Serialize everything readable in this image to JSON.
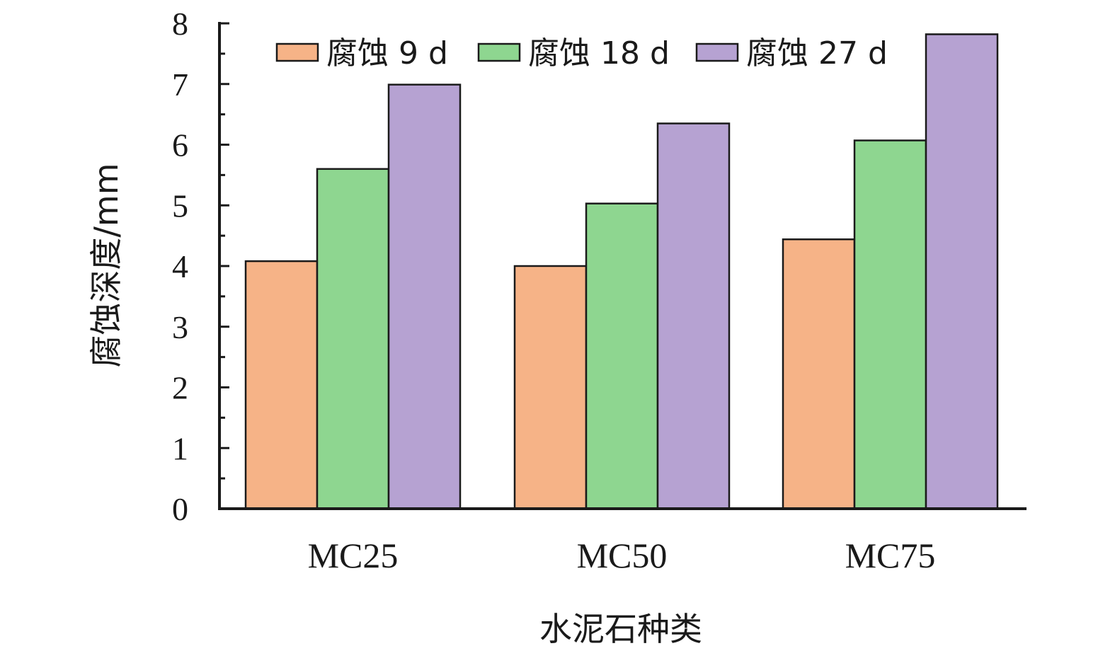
{
  "chart_data": {
    "type": "bar",
    "categories": [
      "MC25",
      "MC50",
      "MC75"
    ],
    "series": [
      {
        "name": "腐蚀 9 d",
        "color": "#F6B387",
        "values": [
          4.08,
          4.0,
          4.44
        ]
      },
      {
        "name": "腐蚀 18 d",
        "color": "#8ED690",
        "values": [
          5.6,
          5.03,
          6.07
        ]
      },
      {
        "name": "腐蚀 27 d",
        "color": "#B6A2D2",
        "values": [
          6.99,
          6.35,
          7.82
        ]
      }
    ],
    "xlabel": "水泥石种类",
    "ylabel": "腐蚀深度/mm",
    "ylim": [
      0,
      8
    ],
    "yticks": [
      0,
      1,
      2,
      3,
      4,
      5,
      6,
      7,
      8
    ],
    "ytick_labels": [
      "0",
      "1",
      "2",
      "3",
      "4",
      "5",
      "6",
      "7",
      "8"
    ],
    "grid": false,
    "legend_position": "top"
  }
}
